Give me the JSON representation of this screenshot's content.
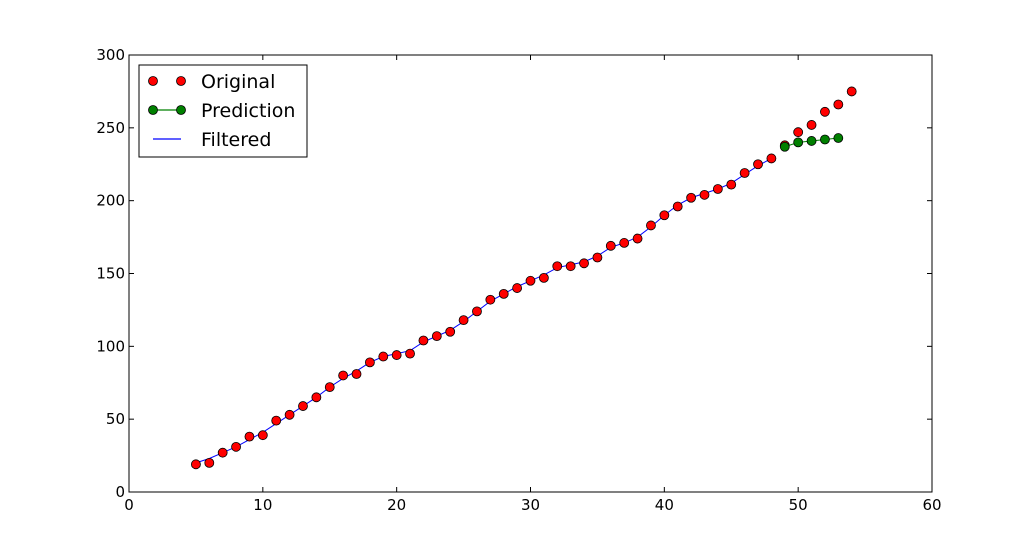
{
  "chart_data": {
    "type": "line",
    "title": "",
    "xlabel": "",
    "ylabel": "",
    "xlim": [
      0,
      60
    ],
    "ylim": [
      0,
      300
    ],
    "xticks": [
      0,
      10,
      20,
      30,
      40,
      50,
      60
    ],
    "yticks": [
      0,
      50,
      100,
      150,
      200,
      250,
      300
    ],
    "grid": false,
    "legend_position": "top-left",
    "series": [
      {
        "name": "Original",
        "style": "markers",
        "color": "#ff0000",
        "x": [
          5,
          6,
          7,
          8,
          9,
          10,
          11,
          12,
          13,
          14,
          15,
          16,
          17,
          18,
          19,
          20,
          21,
          22,
          23,
          24,
          25,
          26,
          27,
          28,
          29,
          30,
          31,
          32,
          33,
          34,
          35,
          36,
          37,
          38,
          39,
          40,
          41,
          42,
          43,
          44,
          45,
          46,
          47,
          48,
          49,
          50,
          51,
          52,
          53,
          54
        ],
        "y": [
          19,
          20,
          27,
          31,
          38,
          39,
          49,
          53,
          59,
          65,
          72,
          80,
          81,
          89,
          93,
          94,
          95,
          104,
          107,
          110,
          118,
          124,
          132,
          136,
          140,
          145,
          147,
          155,
          155,
          157,
          161,
          169,
          171,
          174,
          183,
          190,
          196,
          202,
          204,
          208,
          211,
          219,
          225,
          229,
          238,
          247,
          252,
          261,
          266,
          275
        ]
      },
      {
        "name": "Prediction",
        "style": "line+markers",
        "color": "#008000",
        "x": [
          49,
          50,
          51,
          52,
          53
        ],
        "y": [
          237,
          240,
          241,
          242,
          243
        ]
      },
      {
        "name": "Filtered",
        "style": "line",
        "color": "#0000ff",
        "x": [
          5,
          6,
          7,
          8,
          9,
          10,
          11,
          12,
          13,
          14,
          15,
          16,
          17,
          18,
          19,
          20,
          21,
          22,
          23,
          24,
          25,
          26,
          27,
          28,
          29,
          30,
          31,
          32,
          33,
          34,
          35,
          36,
          37,
          38,
          39,
          40,
          41,
          42,
          43,
          44,
          45,
          46,
          47,
          48
        ],
        "y": [
          20,
          23,
          27,
          31,
          36,
          41,
          47,
          53,
          59,
          65,
          72,
          78,
          83,
          89,
          93,
          95,
          97,
          103,
          107,
          111,
          117,
          124,
          131,
          136,
          141,
          145,
          149,
          154,
          156,
          158,
          162,
          168,
          171,
          175,
          182,
          190,
          197,
          202,
          205,
          208,
          212,
          218,
          224,
          229
        ]
      }
    ]
  }
}
